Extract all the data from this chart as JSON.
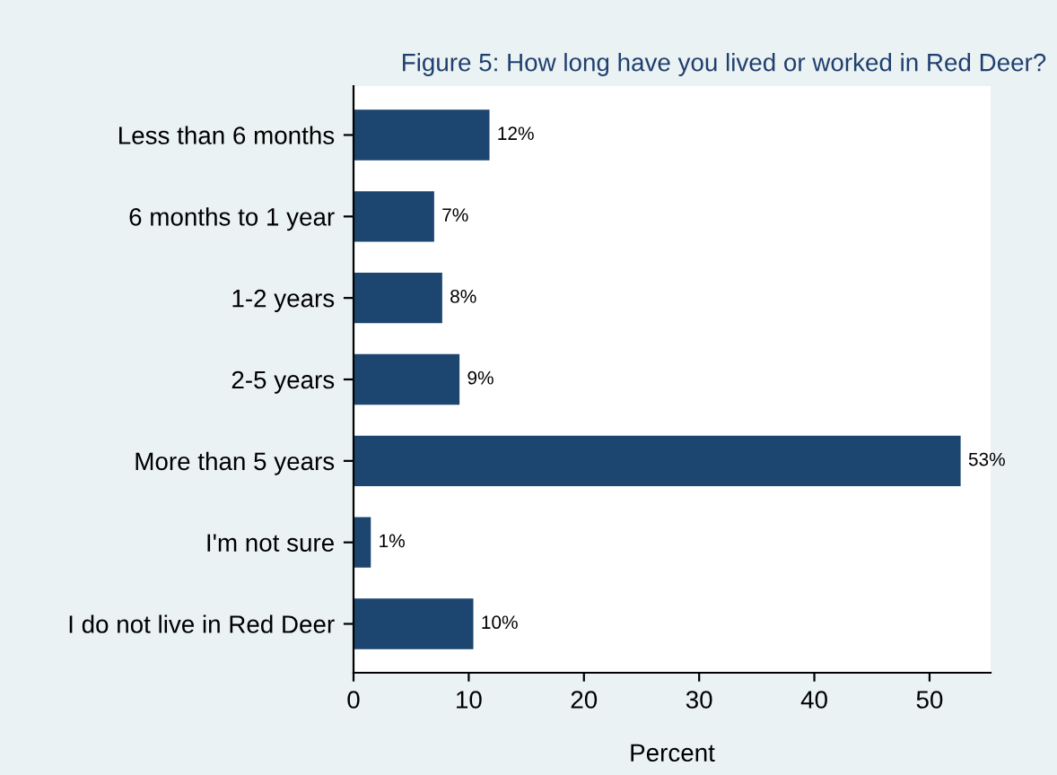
{
  "chart_data": {
    "type": "bar",
    "orientation": "horizontal",
    "title": "Figure 5: How long have you lived or worked in Red Deer?",
    "xlabel": "Percent",
    "categories": [
      "Less than 6 months",
      "6 months to 1 year",
      "1-2 years",
      "2-5 years",
      "More than 5 years",
      "I'm not sure",
      "I do not live in Red Deer"
    ],
    "values": [
      11.8,
      7.0,
      7.7,
      9.2,
      52.7,
      1.5,
      10.4
    ],
    "value_labels": [
      "12%",
      "7%",
      "8%",
      "9%",
      "53%",
      "1%",
      "10%"
    ],
    "color": "#1c4670",
    "xlim": [
      0,
      55.3
    ],
    "xticks": [
      0,
      10,
      20,
      30,
      40,
      50
    ],
    "grid": false,
    "legend": false
  }
}
